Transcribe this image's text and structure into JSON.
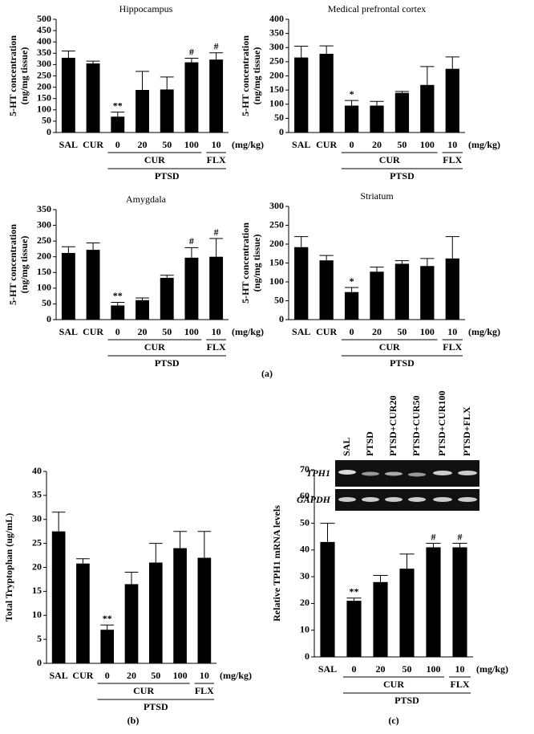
{
  "figure": {
    "panel_labels": [
      "(a)",
      "(b)",
      "(c)"
    ]
  },
  "gel": {
    "lanes": [
      "SAL",
      "PTSD",
      "PTSD+CUR20",
      "PTSD+CUR50",
      "PTSD+CUR100",
      "PTSD+FLX"
    ],
    "rows": [
      "TPH1",
      "GAPDH"
    ]
  },
  "chart_data": [
    {
      "type": "bar",
      "title": "Hippocampus",
      "ylabel": [
        "5-HT concentration",
        "(ng/mg tissue)"
      ],
      "categories": [
        "SAL",
        "CUR",
        "0",
        "20",
        "50",
        "100",
        "10"
      ],
      "unit": "(mg/kg)",
      "values": [
        330,
        305,
        70,
        188,
        190,
        310,
        322
      ],
      "errors": [
        30,
        10,
        20,
        82,
        55,
        18,
        30
      ],
      "annotations": [
        null,
        null,
        "**",
        null,
        null,
        "#",
        "#"
      ],
      "groups": [
        {
          "label": "CUR",
          "span": [
            2,
            5
          ]
        },
        {
          "label": "FLX",
          "span": [
            6,
            6
          ]
        },
        {
          "label": "PTSD",
          "span": [
            2,
            6
          ]
        }
      ],
      "color": "#000000",
      "ylim": [
        0,
        500
      ],
      "yticks": [
        0,
        50,
        100,
        150,
        200,
        250,
        300,
        350,
        400,
        450,
        500
      ]
    },
    {
      "type": "bar",
      "title": "Medical prefrontal cortex",
      "ylabel": [
        "5-HT concentration",
        "(ng/mg tissue)"
      ],
      "categories": [
        "SAL",
        "CUR",
        "0",
        "20",
        "50",
        "100",
        "10"
      ],
      "unit": "(mg/kg)",
      "values": [
        265,
        278,
        95,
        95,
        140,
        168,
        225
      ],
      "errors": [
        40,
        28,
        18,
        15,
        5,
        65,
        42
      ],
      "annotations": [
        null,
        null,
        "*",
        null,
        null,
        null,
        null
      ],
      "groups": [
        {
          "label": "CUR",
          "span": [
            2,
            5
          ]
        },
        {
          "label": "FLX",
          "span": [
            6,
            6
          ]
        },
        {
          "label": "PTSD",
          "span": [
            2,
            6
          ]
        }
      ],
      "color": "#000000",
      "ylim": [
        0,
        400
      ],
      "yticks": [
        0,
        50,
        100,
        150,
        200,
        250,
        300,
        350,
        400
      ]
    },
    {
      "type": "bar",
      "title": "Amygdala",
      "ylabel": [
        "5-HT concentration",
        "(ng/mg tissue)"
      ],
      "categories": [
        "SAL",
        "CUR",
        "0",
        "20",
        "50",
        "100",
        "10"
      ],
      "unit": "(mg/kg)",
      "values": [
        212,
        222,
        45,
        62,
        133,
        197,
        200
      ],
      "errors": [
        20,
        22,
        10,
        7,
        8,
        32,
        58
      ],
      "annotations": [
        null,
        null,
        "**",
        null,
        null,
        "#",
        "#"
      ],
      "groups": [
        {
          "label": "CUR",
          "span": [
            2,
            5
          ]
        },
        {
          "label": "FLX",
          "span": [
            6,
            6
          ]
        },
        {
          "label": "PTSD",
          "span": [
            2,
            6
          ]
        }
      ],
      "color": "#000000",
      "ylim": [
        0,
        350
      ],
      "yticks": [
        0,
        50,
        100,
        150,
        200,
        250,
        300,
        350
      ]
    },
    {
      "type": "bar",
      "title": "Striatum",
      "ylabel": [
        "5-HT concentration",
        "(ng/mg tissue)"
      ],
      "categories": [
        "SAL",
        "CUR",
        "0",
        "20",
        "50",
        "100",
        "10"
      ],
      "unit": "(mg/kg)",
      "values": [
        192,
        157,
        73,
        127,
        148,
        142,
        162
      ],
      "errors": [
        28,
        13,
        12,
        12,
        8,
        20,
        58
      ],
      "annotations": [
        null,
        null,
        "*",
        null,
        null,
        null,
        null
      ],
      "groups": [
        {
          "label": "CUR",
          "span": [
            2,
            5
          ]
        },
        {
          "label": "FLX",
          "span": [
            6,
            6
          ]
        },
        {
          "label": "PTSD",
          "span": [
            2,
            6
          ]
        }
      ],
      "color": "#000000",
      "ylim": [
        0,
        300
      ],
      "yticks": [
        0,
        50,
        100,
        150,
        200,
        250,
        300
      ]
    },
    {
      "type": "bar",
      "ylabel": [
        "Total Tryptophan (ug/mL)"
      ],
      "categories": [
        "SAL",
        "CUR",
        "0",
        "20",
        "50",
        "100",
        "10"
      ],
      "unit": "(mg/kg)",
      "values": [
        27.5,
        20.8,
        7,
        16.5,
        21,
        24,
        22
      ],
      "errors": [
        4,
        1,
        1,
        2.5,
        4,
        3.5,
        5.5
      ],
      "annotations": [
        null,
        null,
        "**",
        null,
        null,
        null,
        null
      ],
      "groups": [
        {
          "label": "CUR",
          "span": [
            2,
            5
          ]
        },
        {
          "label": "FLX",
          "span": [
            6,
            6
          ]
        },
        {
          "label": "PTSD",
          "span": [
            2,
            6
          ]
        }
      ],
      "color": "#000000",
      "ylim": [
        0,
        40
      ],
      "yticks": [
        0,
        5,
        10,
        15,
        20,
        25,
        30,
        35,
        40
      ]
    },
    {
      "type": "bar",
      "ylabel": [
        "Relative TPH1 mRNA levels"
      ],
      "categories": [
        "SAL",
        "0",
        "20",
        "50",
        "100",
        "10"
      ],
      "unit": "(mg/kg)",
      "values": [
        43,
        21,
        28,
        33,
        41,
        41
      ],
      "errors": [
        7,
        1,
        2.5,
        5.5,
        1.5,
        1.5
      ],
      "annotations": [
        null,
        "**",
        null,
        null,
        "#",
        "#"
      ],
      "groups": [
        {
          "label": "CUR",
          "span": [
            1,
            4
          ]
        },
        {
          "label": "FLX",
          "span": [
            5,
            5
          ]
        },
        {
          "label": "PTSD",
          "span": [
            1,
            5
          ]
        }
      ],
      "color": "#000000",
      "ylim": [
        0,
        70
      ],
      "yticks": [
        0,
        10,
        20,
        30,
        40,
        50,
        60,
        70
      ]
    }
  ]
}
